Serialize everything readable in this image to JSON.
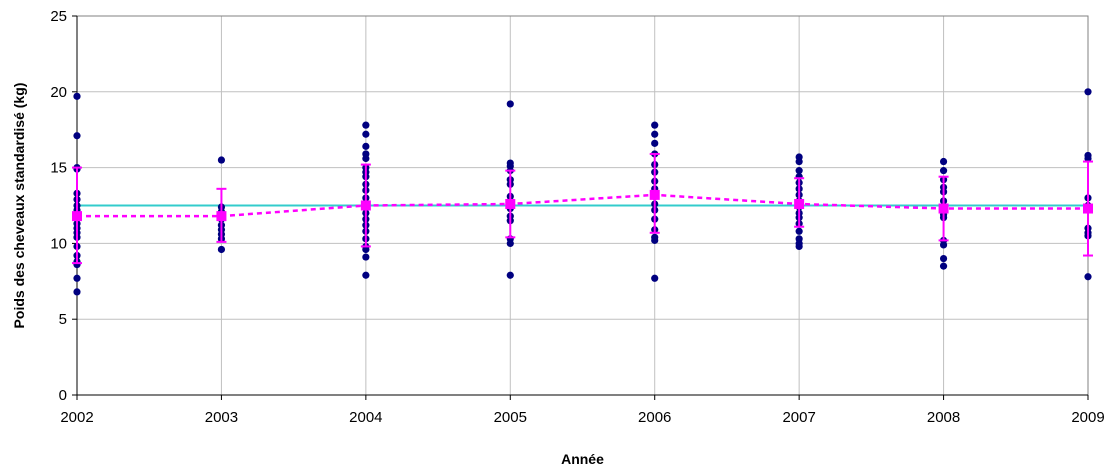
{
  "chart_data": {
    "type": "scatter",
    "title": "",
    "xlabel": "Année",
    "ylabel": "Poids des cheveaux standardisé (kg)",
    "xlim": [
      2002,
      2009
    ],
    "ylim": [
      0,
      25
    ],
    "x_ticks": [
      "2002",
      "2003",
      "2004",
      "2005",
      "2006",
      "2007",
      "2008",
      "2009"
    ],
    "y_ticks": [
      "0",
      "5",
      "10",
      "15",
      "20",
      "25"
    ],
    "grid": true,
    "legend": "none",
    "colors": {
      "points": "#000080",
      "mean": "#ff00ff",
      "overall_line": "#33cccc",
      "grid": "#c0c0c0"
    },
    "overall_mean": 12.5,
    "series": [
      {
        "kind": "individual",
        "points": [
          {
            "x": 2002,
            "ys": [
              19.7,
              17.1,
              15.0,
              14.9,
              13.3,
              12.9,
              12.5,
              12.2,
              11.8,
              11.3,
              11.0,
              10.7,
              10.4,
              9.8,
              9.2,
              8.8,
              8.6,
              7.7,
              6.8
            ]
          },
          {
            "x": 2003,
            "ys": [
              15.5,
              12.4,
              12.1,
              11.8,
              11.6,
              11.2,
              10.9,
              10.6,
              10.3,
              9.6
            ]
          },
          {
            "x": 2004,
            "ys": [
              17.8,
              17.2,
              16.4,
              15.9,
              15.6,
              15.0,
              14.7,
              14.4,
              13.9,
              13.5,
              13.0,
              12.6,
              12.0,
              11.6,
              11.2,
              10.8,
              10.3,
              9.8,
              9.6,
              9.1,
              7.9
            ]
          },
          {
            "x": 2005,
            "ys": [
              19.2,
              15.3,
              15.1,
              14.8,
              14.2,
              13.9,
              13.1,
              12.8,
              12.6,
              12.3,
              11.8,
              11.5,
              10.3,
              10.0,
              7.9
            ]
          },
          {
            "x": 2006,
            "ys": [
              17.8,
              17.2,
              16.6,
              15.9,
              15.2,
              14.7,
              14.1,
              13.6,
              13.1,
              12.6,
              12.2,
              11.6,
              10.9,
              10.4,
              10.2,
              7.7
            ]
          },
          {
            "x": 2007,
            "ys": [
              15.7,
              15.4,
              14.8,
              14.4,
              14.0,
              13.6,
              13.2,
              12.8,
              12.4,
              12.0,
              11.7,
              11.3,
              10.8,
              10.3,
              10.0,
              9.8
            ]
          },
          {
            "x": 2008,
            "ys": [
              15.4,
              14.8,
              14.2,
              13.7,
              13.4,
              12.8,
              12.4,
              12.2,
              11.9,
              11.7,
              10.2,
              9.9,
              9.0,
              8.5
            ]
          },
          {
            "x": 2009,
            "ys": [
              20.0,
              15.8,
              15.6,
              13.0,
              12.5,
              12.2,
              11.0,
              10.7,
              10.5,
              7.8
            ]
          }
        ]
      },
      {
        "kind": "mean",
        "x": [
          2002,
          2003,
          2004,
          2005,
          2006,
          2007,
          2008,
          2009
        ],
        "values": [
          11.8,
          11.8,
          12.5,
          12.6,
          13.2,
          12.6,
          12.3,
          12.3
        ],
        "err_low": [
          8.7,
          10.1,
          9.8,
          10.4,
          10.7,
          11.1,
          10.2,
          9.2
        ],
        "err_high": [
          15.0,
          13.6,
          15.2,
          14.8,
          15.9,
          14.3,
          14.4,
          15.4
        ]
      }
    ]
  }
}
